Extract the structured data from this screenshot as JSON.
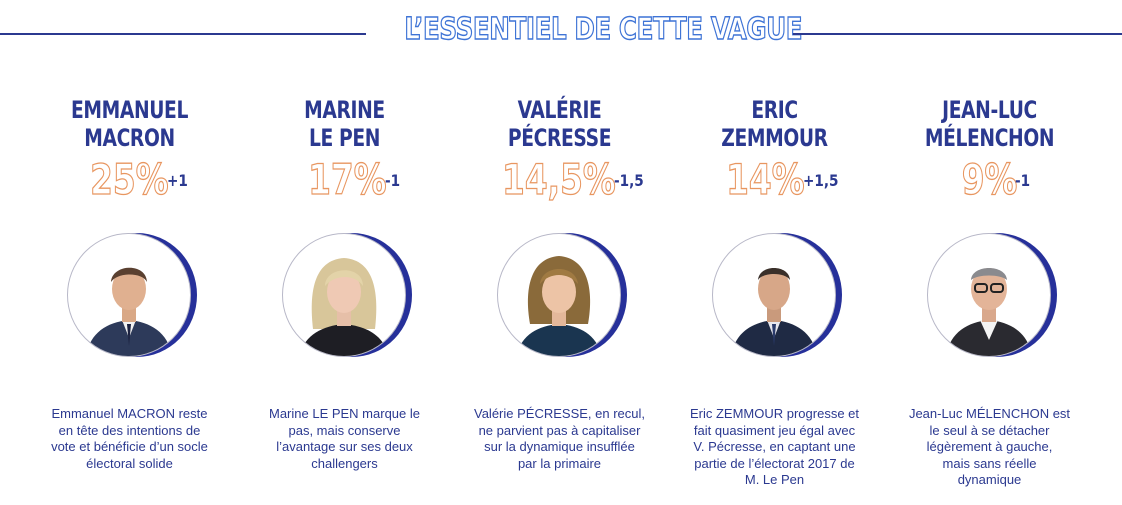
{
  "header": {
    "title": "L’ESSENTIEL DE CETTE VAGUE"
  },
  "candidates": [
    {
      "name": "EMMANUEL\nMACRON",
      "score": "25%",
      "change": "+1",
      "description": "Emmanuel MACRON reste\nen tête des intentions de\nvote et bénéficie d’un socle\nélectoral solide"
    },
    {
      "name": "MARINE\nLE PEN",
      "score": "17%",
      "change": "-1",
      "description": "Marine LE PEN marque le\npas, mais conserve\nl’avantage sur ses deux\nchallengers"
    },
    {
      "name": "VALÉRIE\nPÉCRESSE",
      "score": "14,5%",
      "change": "-1,5",
      "description": "Valérie PÉCRESSE, en recul,\nne parvient pas à capitaliser\nsur la dynamique insufflée\npar la primaire"
    },
    {
      "name": "ERIC\nZEMMOUR",
      "score": "14%",
      "change": "+1,5",
      "description": "Eric ZEMMOUR progresse et\nfait quasiment jeu égal avec\nV. Pécresse, en captant une\npartie de l’électorat 2017 de\nM. Le Pen"
    },
    {
      "name": "JEAN-LUC\nMÉLENCHON",
      "score": "9%",
      "change": "-1",
      "description": "Jean-Luc MÉLENCHON est\nle seul à se détacher\nlégèrement à gauche,\nmais sans réelle\ndynamique"
    }
  ],
  "colors": {
    "primary_blue": "#2b3990",
    "title_outline": "#3f74d6",
    "score_outline": "#e89660",
    "ring": "#26309a"
  }
}
